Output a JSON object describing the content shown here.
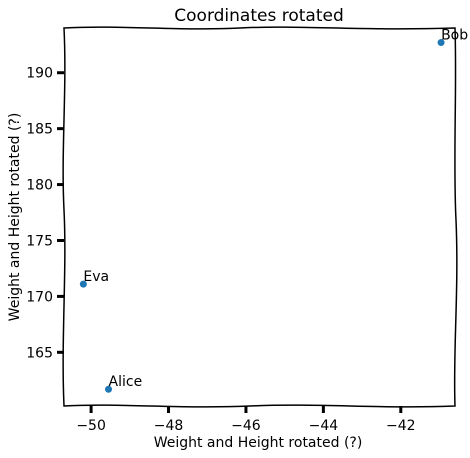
{
  "chart_data": {
    "type": "scatter",
    "title": "Coordinates rotated",
    "xlabel": "Weight and Height rotated (?)",
    "ylabel": "Weight and Height rotated (?)",
    "xlim": [
      -50.7,
      -40.6
    ],
    "ylim": [
      160.2,
      194.0
    ],
    "xticks": [
      -50,
      -48,
      -46,
      -44,
      -42
    ],
    "xtick_labels": [
      "−50",
      "−48",
      "−46",
      "−44",
      "−42"
    ],
    "yticks": [
      165,
      170,
      175,
      180,
      185,
      190
    ],
    "ytick_labels": [
      "165",
      "170",
      "175",
      "180",
      "185",
      "190"
    ],
    "grid": false,
    "marker_color": "#1f77b4",
    "points": [
      {
        "label": "Bob",
        "x": -40.96,
        "y": 192.7
      },
      {
        "label": "Eva",
        "x": -50.2,
        "y": 171.1
      },
      {
        "label": "Alice",
        "x": -49.55,
        "y": 161.7
      }
    ]
  }
}
